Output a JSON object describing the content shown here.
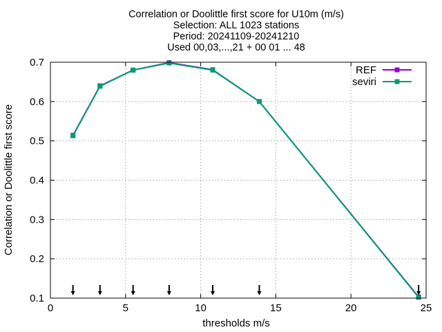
{
  "chart_data": {
    "type": "line",
    "title": [
      "Correlation or Doolittle first score  for U10m (m/s)",
      "Selection: ALL    1023 stations",
      "Period: 20241109-20241210",
      "Used 00,03,...,21 + 00 01 ... 48"
    ],
    "xlabel": "thresholds m/s",
    "ylabel": "Correlation or Doolittle first score",
    "xlim": [
      0,
      25
    ],
    "ylim": [
      0.1,
      0.7
    ],
    "xticks": [
      0,
      5,
      10,
      15,
      20,
      25
    ],
    "yticks": [
      0.1,
      0.2,
      0.3,
      0.4,
      0.5,
      0.6,
      0.7
    ],
    "grid": true,
    "legend_position": "top-right",
    "series": [
      {
        "name": "REF",
        "color": "#9400d3",
        "x": [
          1.5,
          3.3,
          5.5,
          7.9,
          10.8,
          13.9,
          24.5
        ],
        "y": [
          0.514,
          0.64,
          0.68,
          0.699,
          0.681,
          0.6,
          0.103
        ]
      },
      {
        "name": "seviri",
        "color": "#009e73",
        "x": [
          1.5,
          3.3,
          5.5,
          7.9,
          10.8,
          13.9,
          24.5
        ],
        "y": [
          0.513,
          0.639,
          0.68,
          0.698,
          0.68,
          0.6,
          0.102
        ]
      }
    ],
    "threshold_arrows_x": [
      1.5,
      3.3,
      5.5,
      7.9,
      10.8,
      13.9,
      24.5
    ]
  }
}
